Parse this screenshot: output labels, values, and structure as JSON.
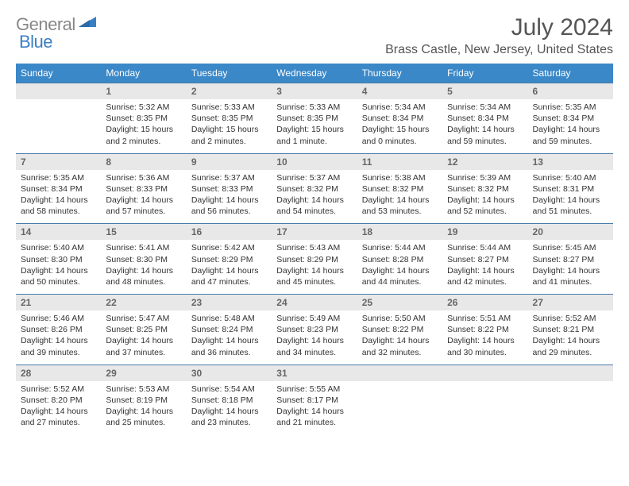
{
  "logo": {
    "text1": "General",
    "text2": "Blue"
  },
  "title": "July 2024",
  "location": "Brass Castle, New Jersey, United States",
  "colors": {
    "header_bg": "#3a88c8",
    "header_text": "#ffffff",
    "daynum_bg": "#e8e8e8",
    "daynum_border": "#4a7aa8",
    "logo_gray": "#888888",
    "logo_blue": "#3a7fc4"
  },
  "daynames": [
    "Sunday",
    "Monday",
    "Tuesday",
    "Wednesday",
    "Thursday",
    "Friday",
    "Saturday"
  ],
  "weeks": [
    {
      "nums": [
        "",
        "1",
        "2",
        "3",
        "4",
        "5",
        "6"
      ],
      "cells": [
        null,
        {
          "sr": "Sunrise: 5:32 AM",
          "ss": "Sunset: 8:35 PM",
          "dl": "Daylight: 15 hours and 2 minutes."
        },
        {
          "sr": "Sunrise: 5:33 AM",
          "ss": "Sunset: 8:35 PM",
          "dl": "Daylight: 15 hours and 2 minutes."
        },
        {
          "sr": "Sunrise: 5:33 AM",
          "ss": "Sunset: 8:35 PM",
          "dl": "Daylight: 15 hours and 1 minute."
        },
        {
          "sr": "Sunrise: 5:34 AM",
          "ss": "Sunset: 8:34 PM",
          "dl": "Daylight: 15 hours and 0 minutes."
        },
        {
          "sr": "Sunrise: 5:34 AM",
          "ss": "Sunset: 8:34 PM",
          "dl": "Daylight: 14 hours and 59 minutes."
        },
        {
          "sr": "Sunrise: 5:35 AM",
          "ss": "Sunset: 8:34 PM",
          "dl": "Daylight: 14 hours and 59 minutes."
        }
      ]
    },
    {
      "nums": [
        "7",
        "8",
        "9",
        "10",
        "11",
        "12",
        "13"
      ],
      "cells": [
        {
          "sr": "Sunrise: 5:35 AM",
          "ss": "Sunset: 8:34 PM",
          "dl": "Daylight: 14 hours and 58 minutes."
        },
        {
          "sr": "Sunrise: 5:36 AM",
          "ss": "Sunset: 8:33 PM",
          "dl": "Daylight: 14 hours and 57 minutes."
        },
        {
          "sr": "Sunrise: 5:37 AM",
          "ss": "Sunset: 8:33 PM",
          "dl": "Daylight: 14 hours and 56 minutes."
        },
        {
          "sr": "Sunrise: 5:37 AM",
          "ss": "Sunset: 8:32 PM",
          "dl": "Daylight: 14 hours and 54 minutes."
        },
        {
          "sr": "Sunrise: 5:38 AM",
          "ss": "Sunset: 8:32 PM",
          "dl": "Daylight: 14 hours and 53 minutes."
        },
        {
          "sr": "Sunrise: 5:39 AM",
          "ss": "Sunset: 8:32 PM",
          "dl": "Daylight: 14 hours and 52 minutes."
        },
        {
          "sr": "Sunrise: 5:40 AM",
          "ss": "Sunset: 8:31 PM",
          "dl": "Daylight: 14 hours and 51 minutes."
        }
      ]
    },
    {
      "nums": [
        "14",
        "15",
        "16",
        "17",
        "18",
        "19",
        "20"
      ],
      "cells": [
        {
          "sr": "Sunrise: 5:40 AM",
          "ss": "Sunset: 8:30 PM",
          "dl": "Daylight: 14 hours and 50 minutes."
        },
        {
          "sr": "Sunrise: 5:41 AM",
          "ss": "Sunset: 8:30 PM",
          "dl": "Daylight: 14 hours and 48 minutes."
        },
        {
          "sr": "Sunrise: 5:42 AM",
          "ss": "Sunset: 8:29 PM",
          "dl": "Daylight: 14 hours and 47 minutes."
        },
        {
          "sr": "Sunrise: 5:43 AM",
          "ss": "Sunset: 8:29 PM",
          "dl": "Daylight: 14 hours and 45 minutes."
        },
        {
          "sr": "Sunrise: 5:44 AM",
          "ss": "Sunset: 8:28 PM",
          "dl": "Daylight: 14 hours and 44 minutes."
        },
        {
          "sr": "Sunrise: 5:44 AM",
          "ss": "Sunset: 8:27 PM",
          "dl": "Daylight: 14 hours and 42 minutes."
        },
        {
          "sr": "Sunrise: 5:45 AM",
          "ss": "Sunset: 8:27 PM",
          "dl": "Daylight: 14 hours and 41 minutes."
        }
      ]
    },
    {
      "nums": [
        "21",
        "22",
        "23",
        "24",
        "25",
        "26",
        "27"
      ],
      "cells": [
        {
          "sr": "Sunrise: 5:46 AM",
          "ss": "Sunset: 8:26 PM",
          "dl": "Daylight: 14 hours and 39 minutes."
        },
        {
          "sr": "Sunrise: 5:47 AM",
          "ss": "Sunset: 8:25 PM",
          "dl": "Daylight: 14 hours and 37 minutes."
        },
        {
          "sr": "Sunrise: 5:48 AM",
          "ss": "Sunset: 8:24 PM",
          "dl": "Daylight: 14 hours and 36 minutes."
        },
        {
          "sr": "Sunrise: 5:49 AM",
          "ss": "Sunset: 8:23 PM",
          "dl": "Daylight: 14 hours and 34 minutes."
        },
        {
          "sr": "Sunrise: 5:50 AM",
          "ss": "Sunset: 8:22 PM",
          "dl": "Daylight: 14 hours and 32 minutes."
        },
        {
          "sr": "Sunrise: 5:51 AM",
          "ss": "Sunset: 8:22 PM",
          "dl": "Daylight: 14 hours and 30 minutes."
        },
        {
          "sr": "Sunrise: 5:52 AM",
          "ss": "Sunset: 8:21 PM",
          "dl": "Daylight: 14 hours and 29 minutes."
        }
      ]
    },
    {
      "nums": [
        "28",
        "29",
        "30",
        "31",
        "",
        "",
        ""
      ],
      "cells": [
        {
          "sr": "Sunrise: 5:52 AM",
          "ss": "Sunset: 8:20 PM",
          "dl": "Daylight: 14 hours and 27 minutes."
        },
        {
          "sr": "Sunrise: 5:53 AM",
          "ss": "Sunset: 8:19 PM",
          "dl": "Daylight: 14 hours and 25 minutes."
        },
        {
          "sr": "Sunrise: 5:54 AM",
          "ss": "Sunset: 8:18 PM",
          "dl": "Daylight: 14 hours and 23 minutes."
        },
        {
          "sr": "Sunrise: 5:55 AM",
          "ss": "Sunset: 8:17 PM",
          "dl": "Daylight: 14 hours and 21 minutes."
        },
        null,
        null,
        null
      ]
    }
  ]
}
